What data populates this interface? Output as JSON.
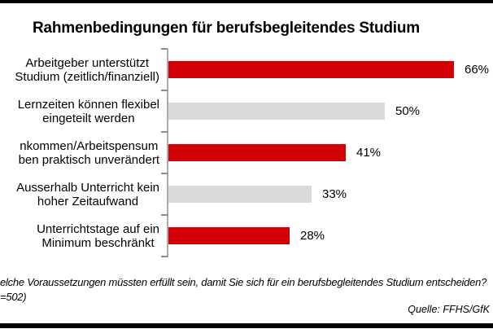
{
  "title": "Rahmenbedingungen für berufsbegleitendes Studium",
  "chart_data": {
    "type": "bar",
    "orientation": "horizontal",
    "title": "Rahmenbedingungen für berufsbegleitendes Studium",
    "categories": [
      "Arbeitgeber unterstützt\nStudium (zeitlich/finanziell)",
      "Lernzeiten können flexibel\neingeteilt werden",
      "nkommen/Arbeitspensum\nben praktisch unverändert",
      "Ausserhalb Unterricht kein\nhoher Zeitaufwand",
      "Unterrichtstage auf ein\nMinimum beschränkt"
    ],
    "values": [
      66,
      50,
      41,
      33,
      28
    ],
    "value_labels": [
      "66%",
      "50%",
      "41%",
      "33%",
      "28%"
    ],
    "bar_colors": [
      "#D30006",
      "#D9D9D9",
      "#D30006",
      "#D9D9D9",
      "#D30006"
    ],
    "xlabel": "",
    "ylabel": "",
    "xlim": [
      0,
      100
    ],
    "grid": false,
    "legend": false,
    "value_axis_visible": false
  },
  "footnote": {
    "line1": "elche Voraussetzungen müssten erfüllt sein, damit Sie sich für ein berufsbegleitendes Studium entscheiden?",
    "line2": "=502)"
  },
  "source": "Quelle: FFHS/GfK",
  "colors": {
    "bar_red": "#D30006",
    "bar_gray": "#D9D9D9",
    "axis_line": "#ABABAB",
    "tick": "#8C8C8C",
    "border": "#000000"
  }
}
